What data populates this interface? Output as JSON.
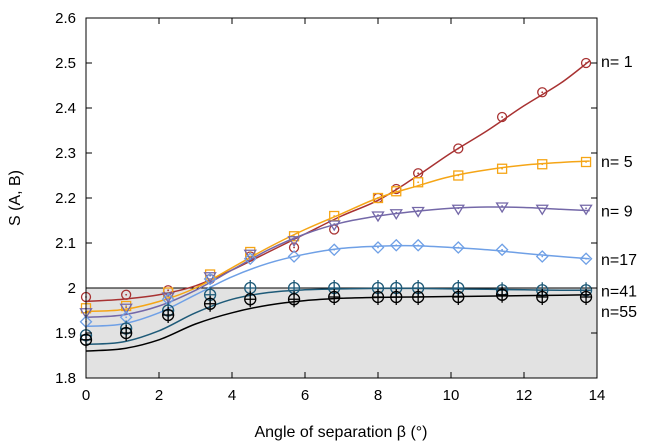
{
  "chart_data": {
    "type": "line",
    "title": "",
    "xlabel": "Angle of separation β (°)",
    "ylabel": "S (A, B)",
    "xlim": [
      0,
      14
    ],
    "ylim": [
      1.8,
      2.6
    ],
    "xticks": [
      0,
      2,
      4,
      6,
      8,
      10,
      12,
      14
    ],
    "yticks": [
      1.8,
      1.9,
      2,
      2.1,
      2.2,
      2.3,
      2.4,
      2.5,
      2.6
    ],
    "grid": false,
    "shaded_region": {
      "y_from": 1.8,
      "y_to": 2.0,
      "color": "#e2e2e2"
    },
    "legend": "series labels at right edge",
    "series": [
      {
        "name": "n= 1",
        "color": "#a83232",
        "marker": "circle-dot",
        "points": [
          [
            0,
            1.98
          ],
          [
            1.1,
            1.985
          ],
          [
            2.25,
            1.995
          ],
          [
            3.4,
            2.02
          ],
          [
            4.5,
            2.07
          ],
          [
            5.7,
            2.09
          ],
          [
            6.8,
            2.13
          ],
          [
            8.0,
            2.2
          ],
          [
            8.5,
            2.22
          ],
          [
            9.1,
            2.255
          ],
          [
            10.2,
            2.31
          ],
          [
            11.4,
            2.38
          ],
          [
            12.5,
            2.435
          ],
          [
            13.7,
            2.5
          ]
        ],
        "curve": [
          [
            0,
            1.97
          ],
          [
            1,
            1.975
          ],
          [
            2,
            1.985
          ],
          [
            3,
            2.005
          ],
          [
            4,
            2.04
          ],
          [
            5,
            2.08
          ],
          [
            6,
            2.12
          ],
          [
            7,
            2.16
          ],
          [
            8,
            2.195
          ],
          [
            9,
            2.245
          ],
          [
            10,
            2.3
          ],
          [
            11,
            2.35
          ],
          [
            12,
            2.405
          ],
          [
            13,
            2.455
          ],
          [
            13.8,
            2.505
          ]
        ]
      },
      {
        "name": "n= 5",
        "color": "#f5a516",
        "marker": "square-dot",
        "points": [
          [
            0,
            1.955
          ],
          [
            1.1,
            1.96
          ],
          [
            2.25,
            1.99
          ],
          [
            3.4,
            2.03
          ],
          [
            4.5,
            2.08
          ],
          [
            5.7,
            2.115
          ],
          [
            6.8,
            2.16
          ],
          [
            8.0,
            2.2
          ],
          [
            8.5,
            2.215
          ],
          [
            9.1,
            2.235
          ],
          [
            10.2,
            2.25
          ],
          [
            11.4,
            2.265
          ],
          [
            12.5,
            2.275
          ],
          [
            13.7,
            2.28
          ]
        ],
        "curve": [
          [
            0,
            1.948
          ],
          [
            1,
            1.952
          ],
          [
            2,
            1.97
          ],
          [
            3,
            2.0
          ],
          [
            4,
            2.045
          ],
          [
            5,
            2.09
          ],
          [
            6,
            2.13
          ],
          [
            7,
            2.165
          ],
          [
            8,
            2.2
          ],
          [
            9,
            2.225
          ],
          [
            10,
            2.248
          ],
          [
            11,
            2.263
          ],
          [
            12,
            2.273
          ],
          [
            13,
            2.279
          ],
          [
            13.8,
            2.282
          ]
        ]
      },
      {
        "name": "n= 9",
        "color": "#7468a8",
        "marker": "triangle-down-dot",
        "points": [
          [
            0,
            1.945
          ],
          [
            1.1,
            1.955
          ],
          [
            2.25,
            1.98
          ],
          [
            3.4,
            2.025
          ],
          [
            4.5,
            2.075
          ],
          [
            5.7,
            2.105
          ],
          [
            6.8,
            2.14
          ],
          [
            8.0,
            2.16
          ],
          [
            8.5,
            2.165
          ],
          [
            9.1,
            2.17
          ],
          [
            10.2,
            2.175
          ],
          [
            11.4,
            2.18
          ],
          [
            12.5,
            2.175
          ],
          [
            13.7,
            2.175
          ]
        ],
        "curve": [
          [
            0,
            1.935
          ],
          [
            1,
            1.94
          ],
          [
            2,
            1.96
          ],
          [
            3,
            1.995
          ],
          [
            4,
            2.04
          ],
          [
            5,
            2.085
          ],
          [
            6,
            2.12
          ],
          [
            7,
            2.145
          ],
          [
            8,
            2.16
          ],
          [
            9,
            2.17
          ],
          [
            10,
            2.177
          ],
          [
            11,
            2.18
          ],
          [
            12,
            2.179
          ],
          [
            13,
            2.175
          ],
          [
            13.8,
            2.172
          ]
        ]
      },
      {
        "name": "n=17",
        "color": "#6fa0e6",
        "marker": "diamond-dot",
        "points": [
          [
            0,
            1.925
          ],
          [
            1.1,
            1.935
          ],
          [
            2.25,
            1.975
          ],
          [
            3.4,
            2.02
          ],
          [
            4.5,
            2.065
          ],
          [
            5.7,
            2.07
          ],
          [
            6.8,
            2.085
          ],
          [
            8.0,
            2.09
          ],
          [
            8.5,
            2.095
          ],
          [
            9.1,
            2.095
          ],
          [
            10.2,
            2.09
          ],
          [
            11.4,
            2.085
          ],
          [
            12.5,
            2.07
          ],
          [
            13.7,
            2.065
          ]
        ],
        "curve": [
          [
            0,
            1.915
          ],
          [
            1,
            1.92
          ],
          [
            2,
            1.945
          ],
          [
            3,
            1.985
          ],
          [
            4,
            2.025
          ],
          [
            5,
            2.055
          ],
          [
            6,
            2.075
          ],
          [
            7,
            2.088
          ],
          [
            8,
            2.093
          ],
          [
            9,
            2.094
          ],
          [
            10,
            2.09
          ],
          [
            11,
            2.085
          ],
          [
            12,
            2.077
          ],
          [
            13,
            2.07
          ],
          [
            13.8,
            2.065
          ]
        ]
      },
      {
        "name": "n=41",
        "color": "#1e5a78",
        "marker": "plus-circle",
        "points": [
          [
            0,
            1.895
          ],
          [
            1.1,
            1.91
          ],
          [
            2.25,
            1.95
          ],
          [
            3.4,
            1.985
          ],
          [
            4.5,
            2.0
          ],
          [
            5.7,
            2.0
          ],
          [
            6.8,
            2.0
          ],
          [
            8.0,
            2.0
          ],
          [
            8.5,
            2.0
          ],
          [
            9.1,
            2.0
          ],
          [
            10.2,
            2.0
          ],
          [
            11.4,
            1.995
          ],
          [
            12.5,
            1.995
          ],
          [
            13.7,
            1.995
          ]
        ],
        "curve": [
          [
            0,
            1.875
          ],
          [
            1,
            1.88
          ],
          [
            2,
            1.905
          ],
          [
            3,
            1.945
          ],
          [
            4,
            1.975
          ],
          [
            5,
            1.99
          ],
          [
            6,
            1.996
          ],
          [
            7,
            1.998
          ],
          [
            8,
            1.999
          ],
          [
            9,
            1.999
          ],
          [
            10,
            1.998
          ],
          [
            11,
            1.997
          ],
          [
            12,
            1.996
          ],
          [
            13,
            1.995
          ],
          [
            13.8,
            1.995
          ]
        ]
      },
      {
        "name": "n=55",
        "color": "#000000",
        "marker": "plus-circle",
        "points": [
          [
            0,
            1.885
          ],
          [
            1.1,
            1.9
          ],
          [
            2.25,
            1.94
          ],
          [
            3.4,
            1.965
          ],
          [
            4.5,
            1.975
          ],
          [
            5.7,
            1.975
          ],
          [
            6.8,
            1.98
          ],
          [
            8.0,
            1.98
          ],
          [
            8.5,
            1.98
          ],
          [
            9.1,
            1.98
          ],
          [
            10.2,
            1.98
          ],
          [
            11.4,
            1.985
          ],
          [
            12.5,
            1.98
          ],
          [
            13.7,
            1.98
          ]
        ],
        "curve": [
          [
            0,
            1.86
          ],
          [
            1,
            1.865
          ],
          [
            2,
            1.885
          ],
          [
            3,
            1.92
          ],
          [
            4,
            1.945
          ],
          [
            5,
            1.962
          ],
          [
            6,
            1.972
          ],
          [
            7,
            1.977
          ],
          [
            8,
            1.979
          ],
          [
            9,
            1.98
          ],
          [
            10,
            1.981
          ],
          [
            11,
            1.982
          ],
          [
            12,
            1.983
          ],
          [
            13,
            1.984
          ],
          [
            13.8,
            1.985
          ]
        ]
      }
    ]
  }
}
